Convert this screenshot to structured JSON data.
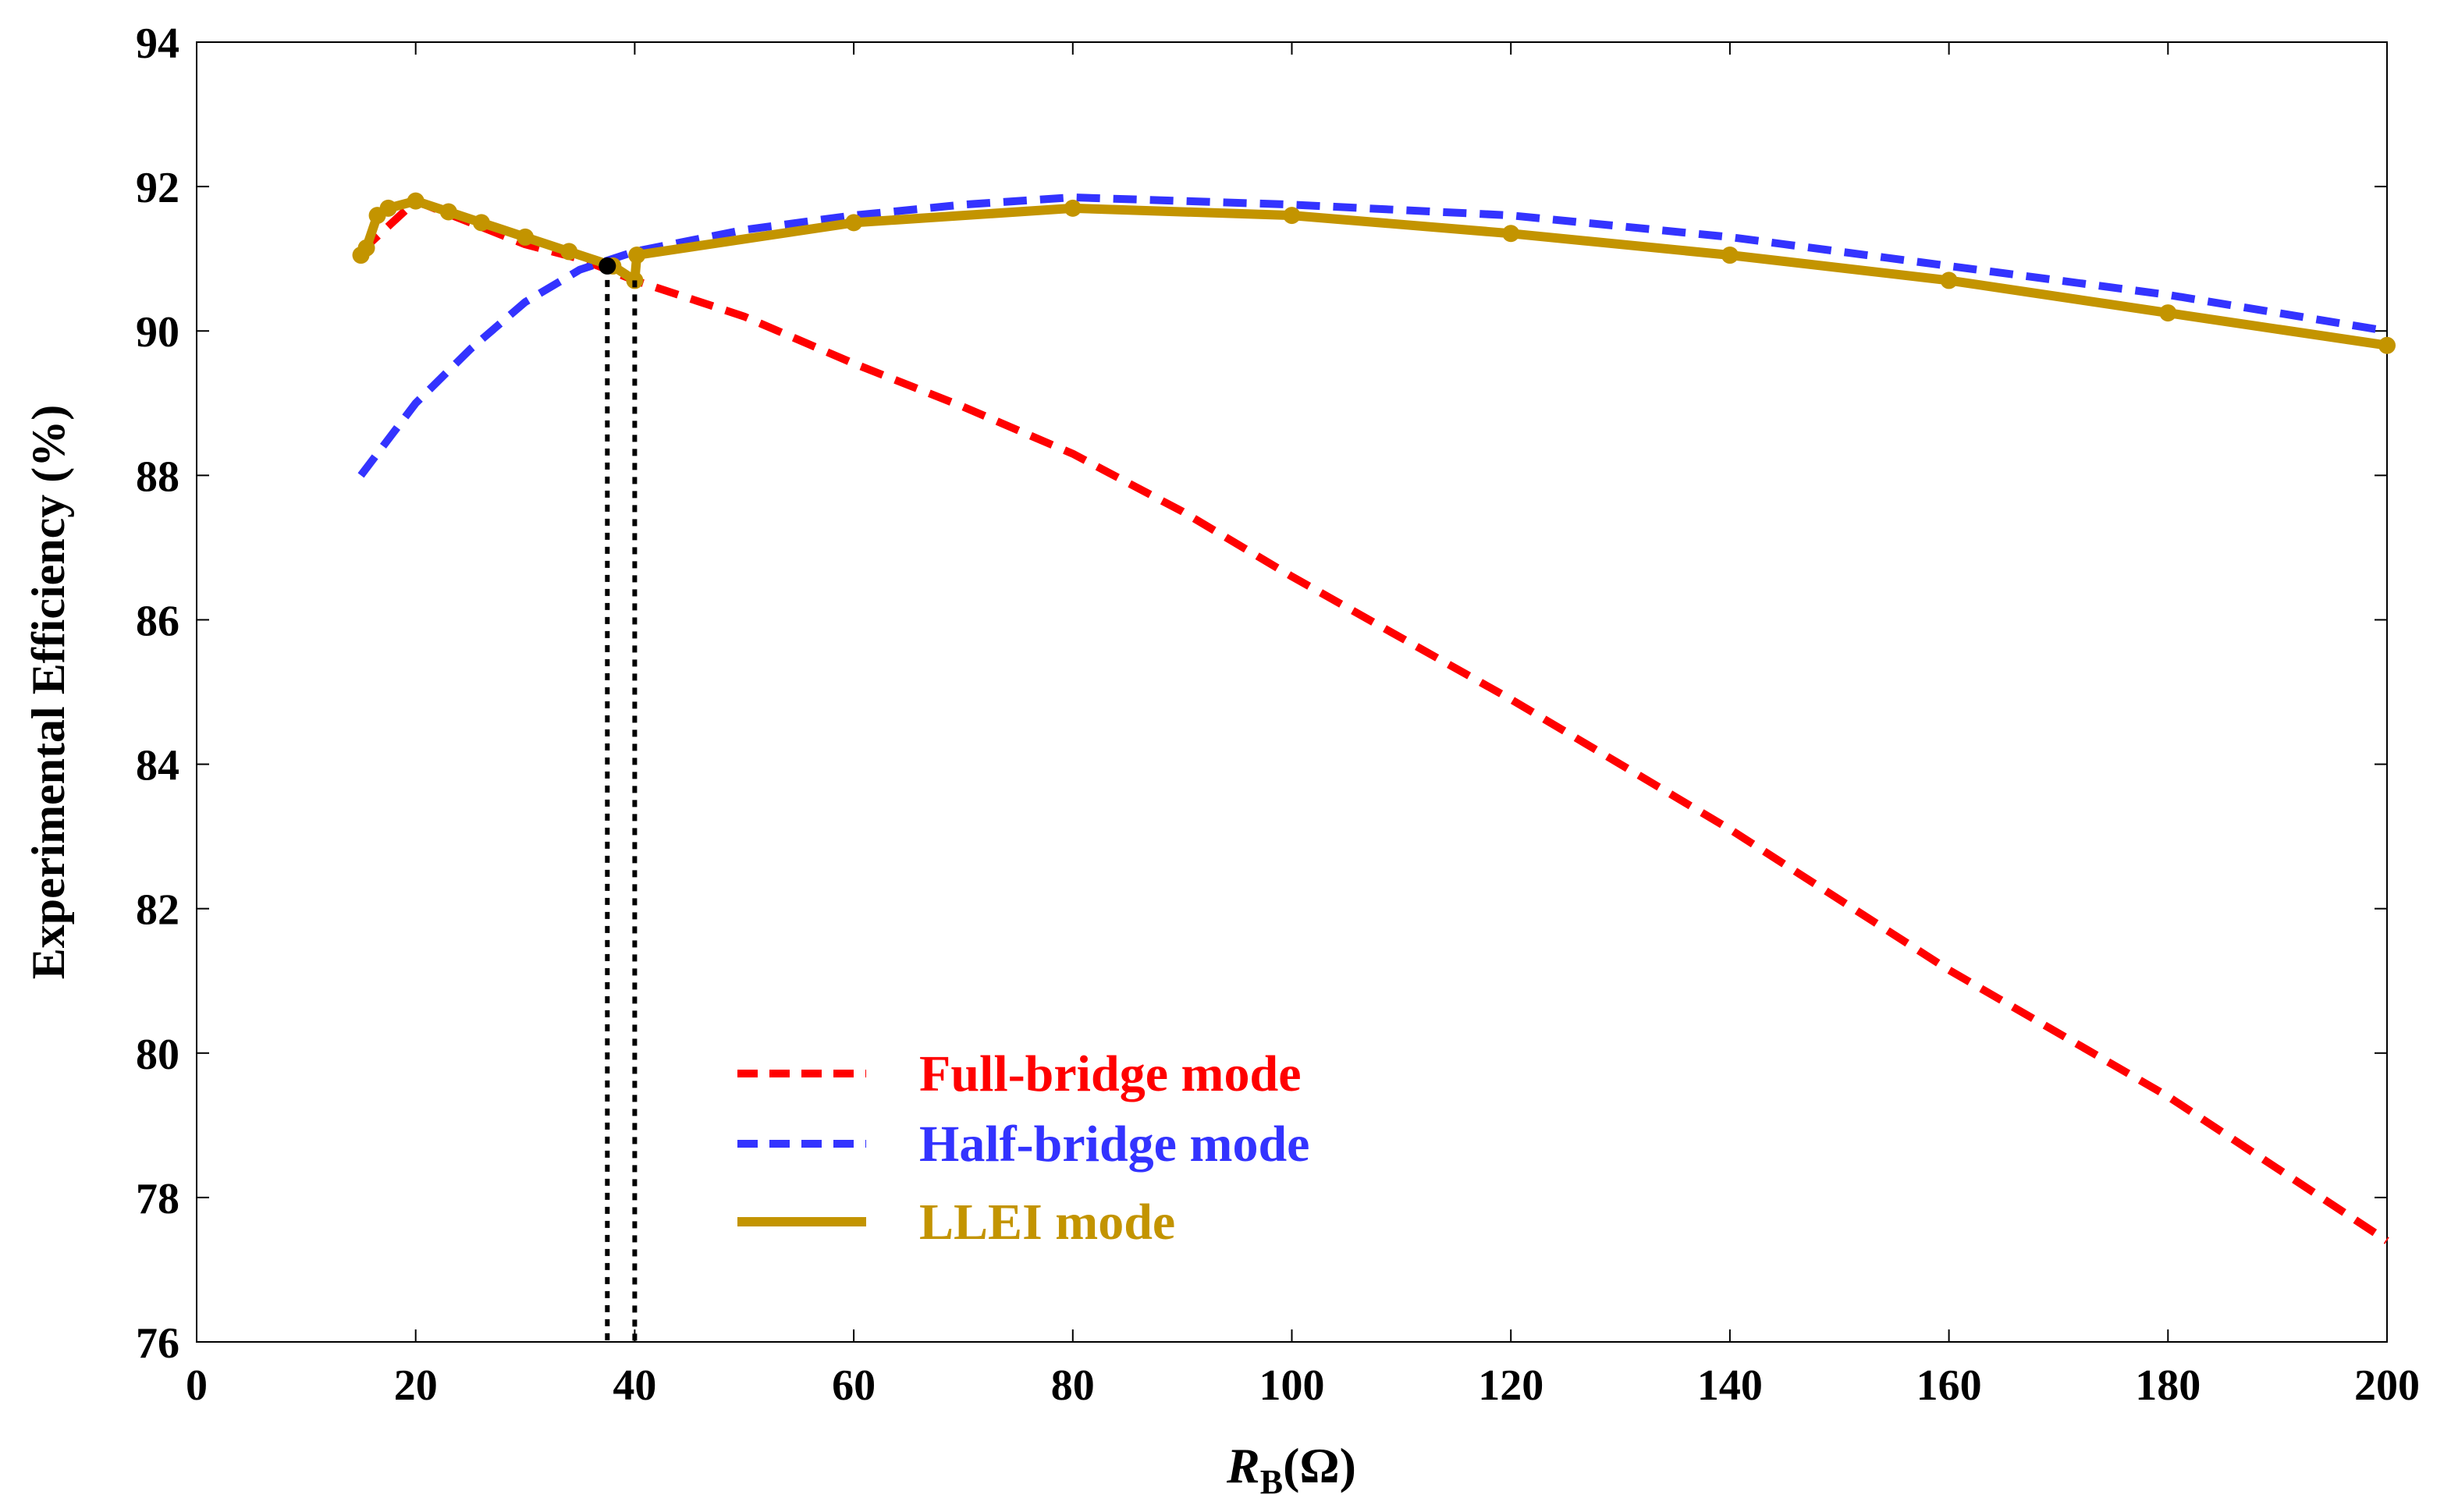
{
  "chart_data": {
    "type": "line",
    "title": "",
    "ylabel": "Experimental Efficiency (%)",
    "xlabel": {
      "variable": "R",
      "subscript": "B",
      "unit": "(Ω)"
    },
    "xlim": [
      0,
      200
    ],
    "ylim": [
      76,
      94
    ],
    "xticks": [
      0,
      20,
      40,
      60,
      80,
      100,
      120,
      140,
      160,
      180,
      200
    ],
    "yticks": [
      76,
      78,
      80,
      82,
      84,
      86,
      88,
      90,
      92,
      94
    ],
    "grid": false,
    "legend_position": "bottom-center",
    "series": [
      {
        "name": "Full-bridge mode",
        "color": "#ff0000",
        "style": "dashed",
        "markers": false,
        "x": [
          15,
          20,
          25,
          30,
          35,
          40,
          50,
          60,
          70,
          80,
          90,
          100,
          120,
          140,
          160,
          180,
          200
        ],
        "y": [
          91.1,
          91.8,
          91.5,
          91.2,
          91.0,
          90.7,
          90.2,
          89.55,
          88.95,
          88.3,
          87.5,
          86.6,
          84.9,
          83.1,
          81.15,
          79.4,
          77.4
        ]
      },
      {
        "name": "Half-bridge mode",
        "color": "#3333ff",
        "style": "dashed",
        "markers": false,
        "x": [
          15,
          20,
          25,
          30,
          35,
          40,
          50,
          60,
          70,
          80,
          90,
          100,
          120,
          140,
          160,
          180,
          200
        ],
        "y": [
          88.0,
          89.0,
          89.75,
          90.4,
          90.85,
          91.1,
          91.4,
          91.6,
          91.75,
          91.85,
          91.8,
          91.75,
          91.6,
          91.3,
          90.9,
          90.5,
          90.0
        ]
      },
      {
        "name": "LLEI mode",
        "color": "#c39400",
        "style": "solid",
        "markers": true,
        "x": [
          15,
          15.5,
          16.5,
          17.5,
          20,
          23,
          26,
          30,
          34,
          38,
          40,
          40.2,
          60,
          80,
          100,
          120,
          140,
          160,
          180,
          200
        ],
        "y": [
          91.05,
          91.15,
          91.6,
          91.7,
          91.8,
          91.65,
          91.5,
          91.3,
          91.1,
          90.9,
          90.7,
          91.05,
          91.5,
          91.7,
          91.6,
          91.35,
          91.05,
          90.7,
          90.25,
          89.8
        ]
      }
    ],
    "annotations": {
      "crossover_point": {
        "x": 37.5,
        "y": 90.9
      },
      "vertical_dotted_lines_x": [
        37.5,
        40
      ]
    }
  }
}
